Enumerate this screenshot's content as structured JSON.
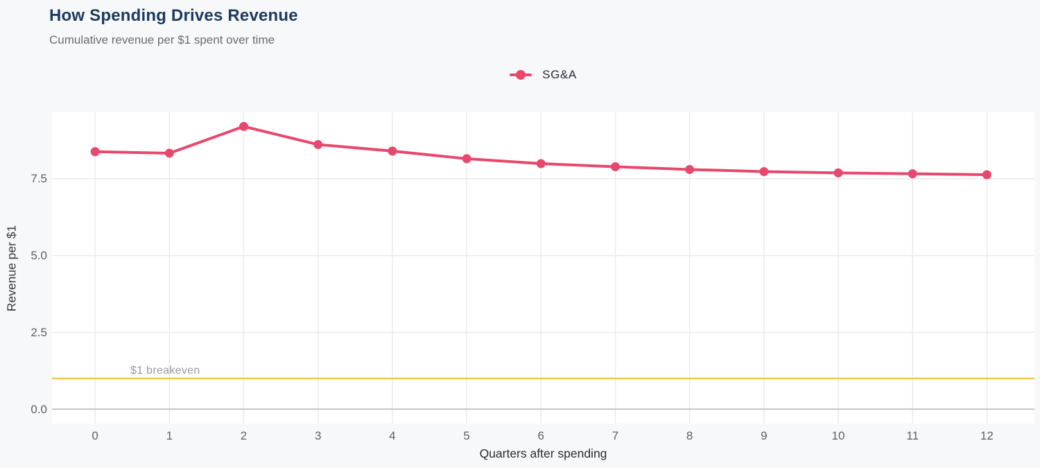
{
  "header": {
    "title": "How Spending Drives Revenue",
    "subtitle": "Cumulative revenue per $1 spent over time"
  },
  "legend": {
    "series_label": "SG&A"
  },
  "chart_data": {
    "type": "line",
    "title": "How Spending Drives Revenue",
    "subtitle": "Cumulative revenue per $1 spent over time",
    "xlabel": "Quarters after spending",
    "ylabel": "Revenue per $1",
    "x": [
      0,
      1,
      2,
      3,
      4,
      5,
      6,
      7,
      8,
      9,
      10,
      11,
      12
    ],
    "series": [
      {
        "name": "SG&A",
        "color": "#E8486D",
        "values": [
          8.38,
          8.33,
          9.2,
          8.61,
          8.4,
          8.15,
          7.99,
          7.89,
          7.8,
          7.73,
          7.69,
          7.66,
          7.63
        ]
      }
    ],
    "xlim": [
      -0.58,
      12.64
    ],
    "ylim": [
      -0.47,
      9.66
    ],
    "xticks": [
      0,
      1,
      2,
      3,
      4,
      5,
      6,
      7,
      8,
      9,
      10,
      11,
      12
    ],
    "xtick_labels": [
      "0",
      "1",
      "2",
      "3",
      "4",
      "5",
      "6",
      "7",
      "8",
      "9",
      "10",
      "11",
      "12"
    ],
    "yticks": [
      0,
      2.5,
      5,
      7.5
    ],
    "ytick_labels": [
      "0.0",
      "2.5",
      "5.0",
      "7.5"
    ],
    "grid": true,
    "legend_position": "top-center",
    "reference_line": {
      "value": 1.0,
      "label": "$1 breakeven",
      "color": "#F5C74E"
    }
  },
  "colors": {
    "background": "#f7f8fa",
    "plot_background": "#ffffff",
    "gridline": "#eaeaed",
    "zero_line": "#c4c4c7",
    "series": "#E8486D",
    "breakeven": "#F5C74E",
    "title": "#1c3a5e",
    "subtitle": "#6b6b6b",
    "tick_label": "#5f5f5f",
    "axis_title": "#2b2b2b",
    "breakeven_label": "#9b9b9f",
    "legend_text": "#2a2a35"
  }
}
